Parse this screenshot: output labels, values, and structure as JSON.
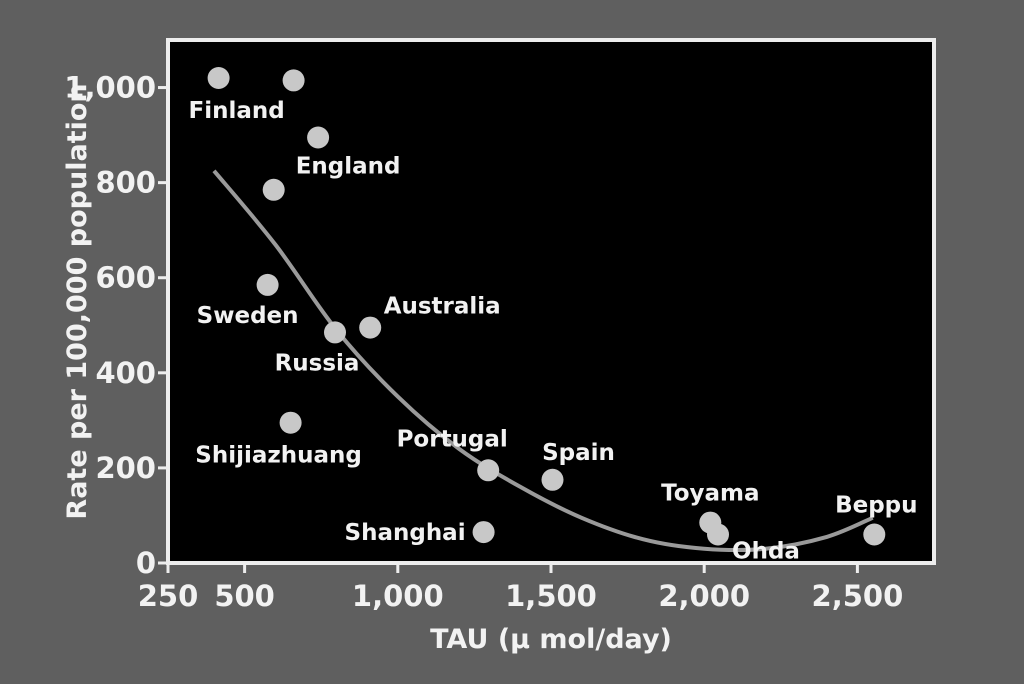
{
  "chart_data": {
    "type": "scatter",
    "title": "",
    "xlabel": "TAU (μ mol/day)",
    "ylabel": "Rate per 100,000 population",
    "xlim": [
      250,
      2750
    ],
    "ylim": [
      0,
      1100
    ],
    "x_ticks": [
      {
        "value": 250,
        "label": "250"
      },
      {
        "value": 500,
        "label": "500"
      },
      {
        "value": 1000,
        "label": "1,000"
      },
      {
        "value": 1500,
        "label": "1,500"
      },
      {
        "value": 2000,
        "label": "2,000"
      },
      {
        "value": 2500,
        "label": "2,500"
      }
    ],
    "y_ticks": [
      {
        "value": 0,
        "label": "0"
      },
      {
        "value": 200,
        "label": "200"
      },
      {
        "value": 400,
        "label": "400"
      },
      {
        "value": 600,
        "label": "600"
      },
      {
        "value": 800,
        "label": "800"
      },
      {
        "value": 1000,
        "label": "1,000"
      }
    ],
    "grid": false,
    "legend": "none",
    "marker_color": "#c8c8c8",
    "plot_background": "#000000",
    "points": [
      {
        "label": "Finland",
        "x": 415,
        "y": 1020
      },
      {
        "label": "",
        "x": 660,
        "y": 1015
      },
      {
        "label": "England",
        "x": 740,
        "y": 895
      },
      {
        "label": "",
        "x": 595,
        "y": 785
      },
      {
        "label": "Sweden",
        "x": 575,
        "y": 585
      },
      {
        "label": "Australia",
        "x": 910,
        "y": 495
      },
      {
        "label": "Russia",
        "x": 795,
        "y": 485
      },
      {
        "label": "Shijiazhuang",
        "x": 650,
        "y": 295
      },
      {
        "label": "Portugal",
        "x": 1295,
        "y": 195
      },
      {
        "label": "Spain",
        "x": 1505,
        "y": 175
      },
      {
        "label": "Shanghai",
        "x": 1280,
        "y": 65
      },
      {
        "label": "Toyama",
        "x": 2020,
        "y": 85
      },
      {
        "label": "Ohda",
        "x": 2045,
        "y": 60
      },
      {
        "label": "Beppu",
        "x": 2555,
        "y": 60
      }
    ],
    "trend_line": [
      {
        "x": 400,
        "y": 825
      },
      {
        "x": 600,
        "y": 670
      },
      {
        "x": 800,
        "y": 490
      },
      {
        "x": 1000,
        "y": 350
      },
      {
        "x": 1200,
        "y": 240
      },
      {
        "x": 1400,
        "y": 160
      },
      {
        "x": 1600,
        "y": 95
      },
      {
        "x": 1800,
        "y": 50
      },
      {
        "x": 2000,
        "y": 30
      },
      {
        "x": 2200,
        "y": 30
      },
      {
        "x": 2400,
        "y": 55
      },
      {
        "x": 2550,
        "y": 95
      }
    ]
  }
}
